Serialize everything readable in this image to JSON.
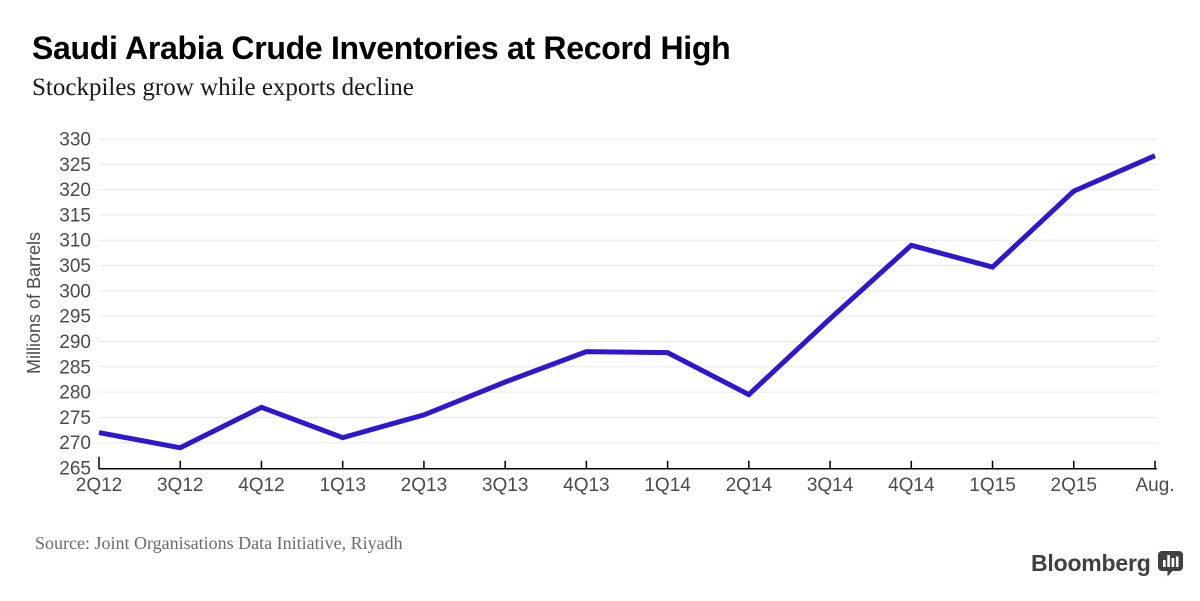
{
  "header": {
    "title": "Saudi Arabia Crude Inventories at Record High",
    "subtitle": "Stockpiles grow while exports decline"
  },
  "chart_data": {
    "type": "line",
    "title": "Saudi Arabia Crude Inventories at Record High",
    "subtitle": "Stockpiles grow while exports decline",
    "categories": [
      "2Q12",
      "3Q12",
      "4Q12",
      "1Q13",
      "2Q13",
      "3Q13",
      "4Q13",
      "1Q14",
      "2Q14",
      "3Q14",
      "4Q14",
      "1Q15",
      "2Q15",
      "Aug."
    ],
    "values": [
      272,
      269,
      277,
      271,
      275.5,
      282,
      288,
      287.8,
      279.5,
      294.5,
      309,
      304.7,
      319.7,
      326.7
    ],
    "xlabel": "",
    "ylabel": "Millions of Barrels",
    "ylim": [
      265,
      330
    ],
    "ytick_step": 5,
    "yticks": [
      265,
      270,
      275,
      280,
      285,
      290,
      295,
      300,
      305,
      310,
      315,
      320,
      325,
      330
    ],
    "grid": true,
    "legend": "none",
    "line_color": "#2f17ce",
    "grid_color": "#e8e8e8",
    "axis_color": "#000000",
    "tick_label_color": "#4a4a4a"
  },
  "footer": {
    "source": "Source: Joint Organisations Data Initiative, Riyadh",
    "brand": "Bloomberg",
    "brand_icon": "bloomberg-terminal-icon",
    "brand_color": "#404040"
  }
}
